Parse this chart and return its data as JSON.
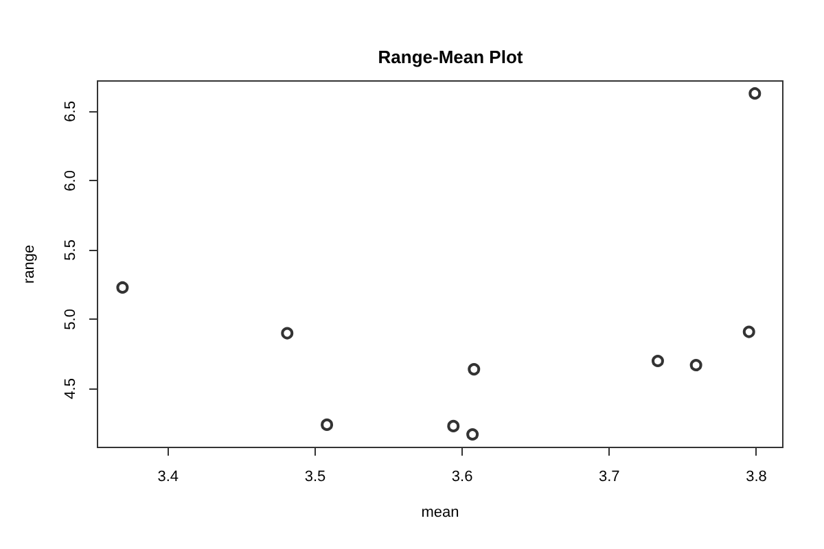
{
  "chart_data": {
    "type": "scatter",
    "title": "Range-Mean Plot",
    "xlabel": "mean",
    "ylabel": "range",
    "x": [
      3.369,
      3.481,
      3.508,
      3.594,
      3.607,
      3.608,
      3.733,
      3.759,
      3.795,
      3.799
    ],
    "values": [
      5.23,
      4.9,
      4.24,
      4.23,
      4.17,
      4.64,
      4.7,
      4.67,
      4.91,
      6.63
    ],
    "color": "#000000",
    "marker": "circle",
    "grid": false,
    "xlim": [
      3.352,
      3.818
    ],
    "xticks": [
      3.4,
      3.5,
      3.6,
      3.7,
      3.8
    ],
    "ylim": [
      4.076,
      6.72
    ],
    "yticks": [
      4.5,
      {
        "value": 5,
        "label": "5.0"
      },
      5.5,
      {
        "value": 6,
        "label": "6.0"
      },
      6.5
    ]
  }
}
